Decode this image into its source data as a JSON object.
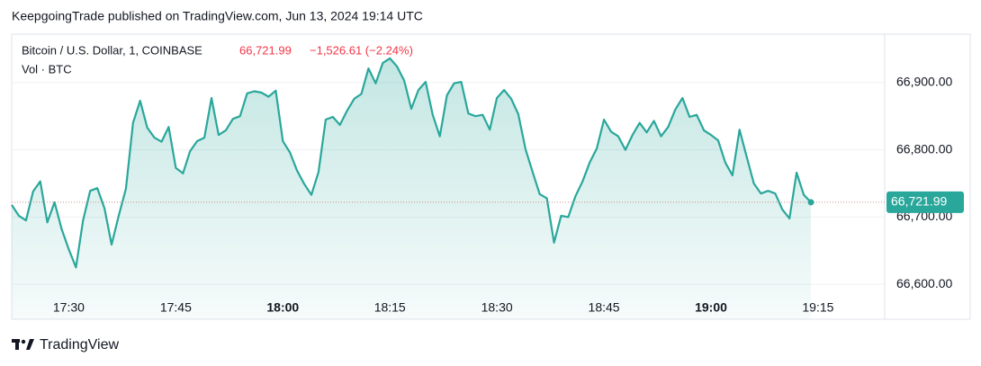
{
  "header": "KeepgoingTrade published on TradingView.com, Jun 13, 2024 19:14 UTC",
  "footer": "TradingView",
  "chart_data": {
    "type": "area",
    "symbol": "Bitcoin / U.S. Dollar, 1, COINBASE",
    "last": "66,721.99",
    "change": "−1,526.61 (−2.24%)",
    "volume_label": "Vol · BTC",
    "color": "#2aa79b",
    "x": [
      "17:22",
      "17:23",
      "17:24",
      "17:25",
      "17:26",
      "17:27",
      "17:28",
      "17:29",
      "17:30",
      "17:31",
      "17:32",
      "17:33",
      "17:34",
      "17:35",
      "17:36",
      "17:37",
      "17:38",
      "17:39",
      "17:40",
      "17:41",
      "17:42",
      "17:43",
      "17:44",
      "17:45",
      "17:46",
      "17:47",
      "17:48",
      "17:49",
      "17:50",
      "17:51",
      "17:52",
      "17:53",
      "17:54",
      "17:55",
      "17:56",
      "17:57",
      "17:58",
      "17:59",
      "18:00",
      "18:01",
      "18:02",
      "18:03",
      "18:04",
      "18:05",
      "18:06",
      "18:07",
      "18:08",
      "18:09",
      "18:10",
      "18:11",
      "18:12",
      "18:13",
      "18:14",
      "18:15",
      "18:16",
      "18:17",
      "18:18",
      "18:19",
      "18:20",
      "18:21",
      "18:22",
      "18:23",
      "18:24",
      "18:25",
      "18:26",
      "18:27",
      "18:28",
      "18:29",
      "18:30",
      "18:31",
      "18:32",
      "18:33",
      "18:34",
      "18:35",
      "18:36",
      "18:37",
      "18:38",
      "18:39",
      "18:40",
      "18:41",
      "18:42",
      "18:43",
      "18:44",
      "18:45",
      "18:46",
      "18:47",
      "18:48",
      "18:49",
      "18:50",
      "18:51",
      "18:52",
      "18:53",
      "18:54",
      "18:55",
      "18:56",
      "18:57",
      "18:58",
      "18:59",
      "19:00",
      "19:01",
      "19:02",
      "19:03",
      "19:04",
      "19:05",
      "19:06",
      "19:07",
      "19:08",
      "19:09",
      "19:10",
      "19:11",
      "19:12",
      "19:13",
      "19:14"
    ],
    "values": [
      66718,
      66702,
      66695,
      66738,
      66753,
      66692,
      66722,
      66682,
      66652,
      66625,
      66695,
      66739,
      66743,
      66713,
      66659,
      66702,
      66742,
      66840,
      66873,
      66833,
      66818,
      66812,
      66834,
      66773,
      66765,
      66798,
      66813,
      66818,
      66877,
      66822,
      66829,
      66846,
      66850,
      66884,
      66887,
      66885,
      66879,
      66888,
      66813,
      66796,
      66769,
      66749,
      66733,
      66767,
      66845,
      66849,
      66837,
      66858,
      66876,
      66883,
      66921,
      66899,
      66929,
      66936,
      66924,
      66903,
      66861,
      66889,
      66901,
      66852,
      66820,
      66881,
      66899,
      66901,
      66854,
      66850,
      66852,
      66830,
      66877,
      66889,
      66876,
      66853,
      66801,
      66767,
      66734,
      66728,
      66662,
      66702,
      66700,
      66731,
      66753,
      66781,
      66802,
      66845,
      66827,
      66820,
      66800,
      66822,
      66840,
      66826,
      66843,
      66820,
      66834,
      66860,
      66877,
      66849,
      66852,
      66829,
      66822,
      66814,
      66781,
      66762,
      66830,
      66790,
      66750,
      66735,
      66739,
      66735,
      66711,
      66698,
      66766,
      66733,
      66721.99
    ],
    "ylim": [
      66548,
      66972
    ],
    "yticks": [
      {
        "value": 66600,
        "label": "66,600.00"
      },
      {
        "value": 66700,
        "label": "66,700.00"
      },
      {
        "value": 66800,
        "label": "66,800.00"
      },
      {
        "value": 66900,
        "label": "66,900.00"
      }
    ],
    "xticks": [
      "17:30",
      "17:45",
      "18:00",
      "18:15",
      "18:30",
      "18:45",
      "19:00",
      "19:15"
    ],
    "grid": true
  }
}
